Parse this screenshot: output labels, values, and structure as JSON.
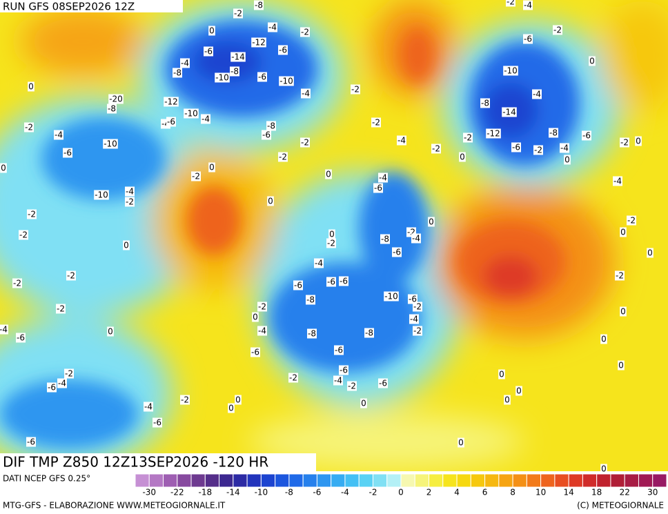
{
  "header": {
    "run": "RUN GFS 08SEP2026 12Z",
    "field": "DIF TMP Z850 12Z13SEP2026 -120 HR"
  },
  "footer": {
    "source": "DATI NCEP GFS 0.25°",
    "credit": "MTG-GFS - ELABORAZIONE WWW.METEOGIORNALE.IT",
    "copyright": "(C) METEOGIORNALE"
  },
  "colorbar": {
    "colors": [
      "#c690d4",
      "#b478c4",
      "#9e5eb2",
      "#874a9f",
      "#6e3a90",
      "#552e8a",
      "#3c2890",
      "#2c2aa4",
      "#2234bc",
      "#1c44d0",
      "#1c56de",
      "#206ae8",
      "#2680ec",
      "#2e96f0",
      "#36acf2",
      "#44c0f4",
      "#5ad2f4",
      "#80e0f4",
      "#b4f0f6",
      "#f6f8b0",
      "#f6f47a",
      "#f6ee40",
      "#f6e41c",
      "#f6d810",
      "#f6c80e",
      "#f6b810",
      "#f6a412",
      "#f49016",
      "#f27a1a",
      "#ee641e",
      "#e84e22",
      "#de3a26",
      "#d02c2a",
      "#c0222e",
      "#b01e36",
      "#a81c44",
      "#a01a54",
      "#981a64"
    ],
    "labels": [
      -30,
      -22,
      -18,
      -14,
      -10,
      -8,
      -6,
      -4,
      -2,
      0,
      2,
      4,
      6,
      8,
      10,
      14,
      18,
      22,
      30
    ]
  },
  "map": {
    "contour_labels": [
      -2,
      -8,
      -4,
      -2,
      0,
      -12,
      -6,
      -6,
      -14,
      -8,
      -10,
      -6,
      -10,
      -4,
      -8,
      -12,
      -10,
      -4,
      -4,
      -6,
      -4,
      -2,
      -20,
      -8,
      0,
      -2,
      -4,
      -6,
      -10,
      -10,
      -4,
      -2,
      0,
      -2,
      -2,
      0,
      -2,
      -2,
      -2,
      0,
      -4,
      -6,
      -2,
      -4,
      -6,
      -4,
      -6,
      -6,
      -2,
      0,
      0,
      -8,
      -6,
      -2,
      -2,
      0,
      -2,
      0,
      0,
      -2,
      -4,
      -2,
      -4,
      -6,
      -8,
      -2,
      -4,
      0,
      -2,
      0,
      -6,
      -4,
      -6,
      -8,
      -6,
      -6,
      -10,
      -6,
      -2,
      -4,
      -2,
      0,
      -4,
      -8,
      -8,
      -6,
      -6,
      -2,
      -6,
      -4,
      -2,
      -6,
      0,
      -2,
      -4,
      -2,
      -2,
      -6,
      0,
      -10,
      -4,
      -8,
      -14,
      -12,
      -2,
      -8,
      -6,
      -6,
      -2,
      -4,
      0,
      0,
      -2,
      0,
      -4,
      -2,
      0,
      0,
      -2,
      0,
      0,
      0,
      0,
      0,
      0,
      0,
      0
    ]
  }
}
